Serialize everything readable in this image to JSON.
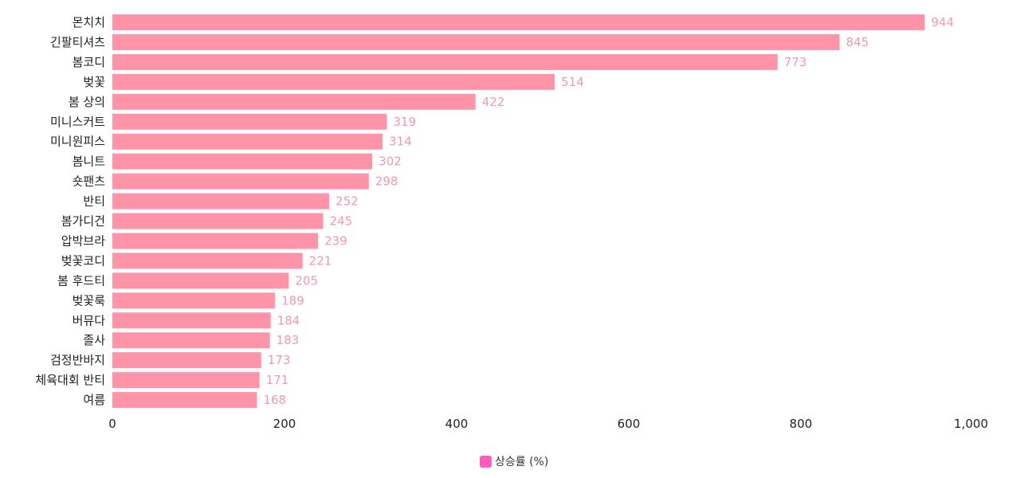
{
  "chart_data": {
    "type": "bar",
    "orientation": "horizontal",
    "categories": [
      "몬치치",
      "긴팔티셔츠",
      "봄코디",
      "벚꽃",
      "봄 상의",
      "미니스커트",
      "미니원피스",
      "봄니트",
      "숏팬츠",
      "반티",
      "봄가디건",
      "압박브라",
      "벚꽃코디",
      "봄 후드티",
      "벚꽃룩",
      "버뮤다",
      "졸사",
      "검정반바지",
      "체육대회 반티",
      "여름"
    ],
    "series": [
      {
        "name": "상승률 (%)",
        "values": [
          944,
          845,
          773,
          514,
          422,
          319,
          314,
          302,
          298,
          252,
          245,
          239,
          221,
          205,
          189,
          184,
          183,
          173,
          171,
          168
        ]
      }
    ],
    "xlim": [
      0,
      1000
    ],
    "xticks": [
      0,
      200,
      400,
      600,
      800,
      1000
    ],
    "xtick_labels": [
      "0",
      "200",
      "400",
      "600",
      "800",
      "1,000"
    ],
    "legend_position": "bottom-center",
    "bar_color": "#ff94a9",
    "value_label_color": "#f09ab0",
    "legend_color": "#ff5cbf",
    "grid": false
  }
}
